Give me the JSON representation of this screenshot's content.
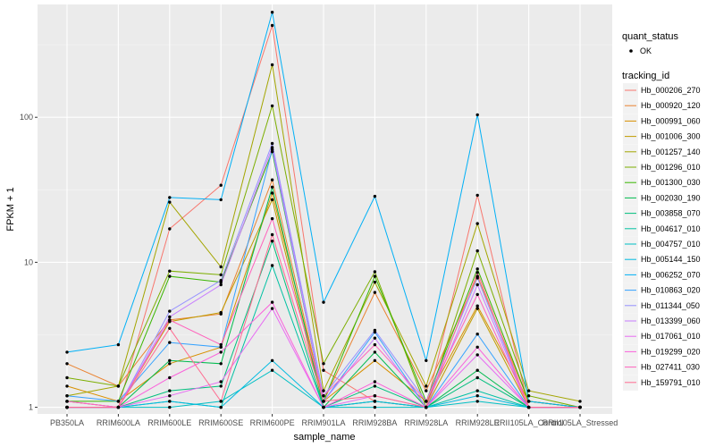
{
  "chart_data": {
    "type": "line",
    "xlabel": "sample_name",
    "ylabel": "FPKM + 1",
    "y_scale": "log10",
    "ylim": [
      0.9,
      600
    ],
    "y_ticks": [
      1,
      10,
      100
    ],
    "y_tick_labels": [
      "1",
      "10",
      "100"
    ],
    "categories": [
      "PB350LA",
      "RRIM600LA",
      "RRIM600LE",
      "RRIM600SE",
      "RRIM600PE",
      "RRIM901LA",
      "RRIM928BA",
      "RRIM928LA",
      "RRIM928LE",
      "RRII105LA_Control",
      "RRII105LA_Stressed"
    ],
    "legend": {
      "position": "right",
      "quant_status_title": "quant_status",
      "quant_status_items": [
        "OK"
      ],
      "tracking_title": "tracking_id"
    },
    "series": [
      {
        "name": "Hb_000206_270",
        "color": "#F8766D",
        "values": [
          1.1,
          1.0,
          17.0,
          34.0,
          430.0,
          1.8,
          1.1,
          1.0,
          29.0,
          1.0,
          1.0
        ]
      },
      {
        "name": "Hb_000920_120",
        "color": "#EA8331",
        "values": [
          2.0,
          1.4,
          4.0,
          4.4,
          37.0,
          1.1,
          6.2,
          1.3,
          8.0,
          1.1,
          1.0
        ]
      },
      {
        "name": "Hb_000991_060",
        "color": "#D89000",
        "values": [
          1.4,
          1.1,
          2.0,
          2.6,
          30.0,
          1.1,
          2.1,
          1.1,
          5.0,
          1.1,
          1.0
        ]
      },
      {
        "name": "Hb_001006_300",
        "color": "#C09B00",
        "values": [
          1.1,
          1.0,
          3.9,
          4.5,
          27.0,
          1.0,
          1.1,
          1.0,
          4.8,
          1.0,
          1.0
        ]
      },
      {
        "name": "Hb_001257_140",
        "color": "#A3A500",
        "values": [
          1.2,
          1.4,
          26.0,
          9.3,
          230.0,
          1.3,
          7.3,
          1.4,
          18.5,
          1.3,
          1.1
        ]
      },
      {
        "name": "Hb_001296_010",
        "color": "#7CAE00",
        "values": [
          1.6,
          1.4,
          8.7,
          8.2,
          120.0,
          2.0,
          8.6,
          1.0,
          12.0,
          1.2,
          1.0
        ]
      },
      {
        "name": "Hb_001300_030",
        "color": "#39B600",
        "values": [
          1.1,
          1.1,
          8.0,
          7.3,
          58.0,
          1.1,
          8.0,
          1.1,
          9.0,
          1.1,
          1.0
        ]
      },
      {
        "name": "Hb_002030_190",
        "color": "#00BB4E",
        "values": [
          1.0,
          1.0,
          2.1,
          2.0,
          33.0,
          1.0,
          2.4,
          1.0,
          1.8,
          1.0,
          1.0
        ]
      },
      {
        "name": "Hb_003858_070",
        "color": "#00BF7D",
        "values": [
          1.0,
          1.0,
          1.3,
          1.4,
          14.0,
          1.0,
          1.4,
          1.0,
          1.6,
          1.0,
          1.0
        ]
      },
      {
        "name": "Hb_004617_010",
        "color": "#00C1A3",
        "values": [
          1.0,
          1.0,
          1.1,
          1.0,
          9.5,
          1.0,
          1.1,
          1.0,
          1.3,
          1.0,
          1.0
        ]
      },
      {
        "name": "Hb_004757_010",
        "color": "#00BFC4",
        "values": [
          1.0,
          1.0,
          1.0,
          1.1,
          1.8,
          1.0,
          1.0,
          1.0,
          1.1,
          1.0,
          1.0
        ]
      },
      {
        "name": "Hb_005144_150",
        "color": "#00BAE0",
        "values": [
          1.0,
          1.0,
          1.1,
          1.0,
          2.1,
          1.0,
          1.1,
          1.0,
          1.2,
          1.0,
          1.0
        ]
      },
      {
        "name": "Hb_006252_070",
        "color": "#00B0F6",
        "values": [
          2.4,
          2.7,
          28.0,
          27.0,
          530.0,
          5.3,
          28.5,
          2.1,
          104.0,
          1.1,
          1.0
        ]
      },
      {
        "name": "Hb_010863_020",
        "color": "#35A2FF",
        "values": [
          1.2,
          1.1,
          2.8,
          2.6,
          60.0,
          1.1,
          3.3,
          1.0,
          3.2,
          1.0,
          1.0
        ]
      },
      {
        "name": "Hb_011344_050",
        "color": "#9590FF",
        "values": [
          1.0,
          1.0,
          4.6,
          7.5,
          66.0,
          1.2,
          3.4,
          1.1,
          7.8,
          1.0,
          1.0
        ]
      },
      {
        "name": "Hb_013399_060",
        "color": "#C77CFF",
        "values": [
          1.0,
          1.0,
          4.2,
          7.0,
          62.0,
          1.1,
          3.0,
          1.0,
          7.0,
          1.0,
          1.0
        ]
      },
      {
        "name": "Hb_017061_010",
        "color": "#E76BF3",
        "values": [
          1.0,
          1.0,
          1.2,
          1.5,
          4.8,
          1.0,
          1.2,
          1.0,
          2.3,
          1.0,
          1.0
        ]
      },
      {
        "name": "Hb_019299_020",
        "color": "#FA62DB",
        "values": [
          1.1,
          1.0,
          1.6,
          2.4,
          5.3,
          1.0,
          1.5,
          1.0,
          2.6,
          1.0,
          1.0
        ]
      },
      {
        "name": "Hb_027411_030",
        "color": "#FF62BC",
        "values": [
          1.0,
          1.0,
          4.0,
          2.7,
          20.0,
          1.2,
          2.7,
          1.1,
          6.0,
          1.0,
          1.0
        ]
      },
      {
        "name": "Hb_159791_010",
        "color": "#FF6C91",
        "values": [
          1.0,
          1.0,
          3.5,
          1.1,
          15.5,
          1.1,
          1.2,
          1.0,
          8.5,
          1.0,
          1.0
        ]
      }
    ]
  }
}
